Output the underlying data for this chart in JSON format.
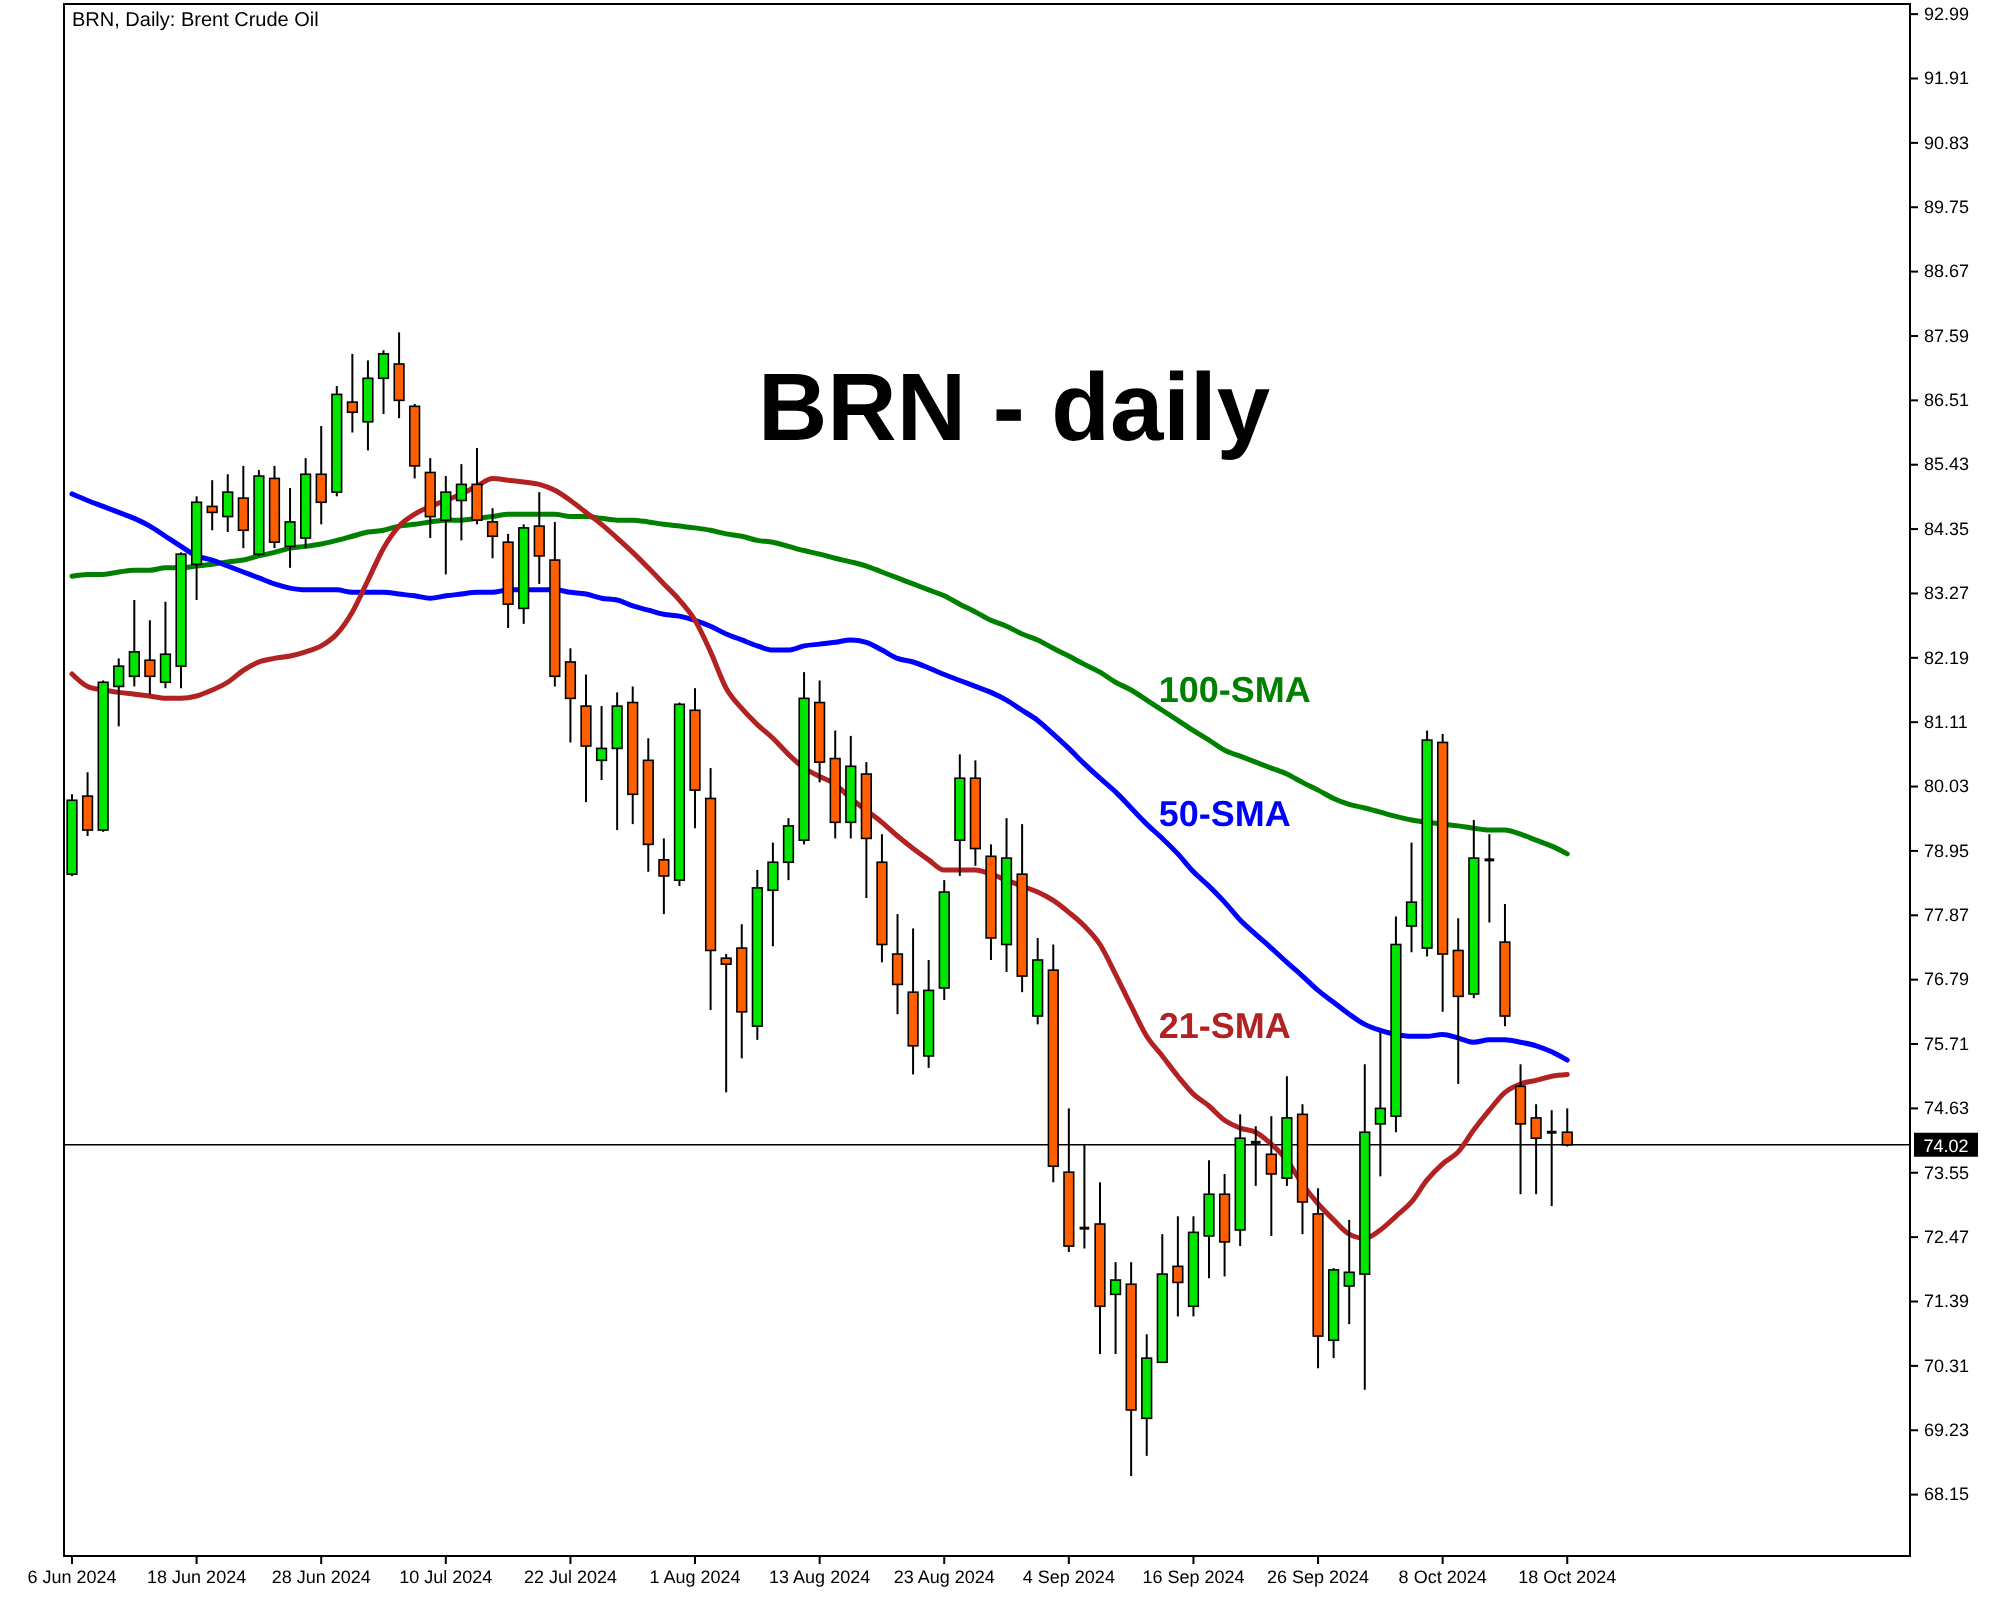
{
  "chart_data": {
    "type": "candlestick",
    "title": "BRN - daily",
    "subtitle": "BRN, Daily:  Brent Crude Oil",
    "categories": [
      "6 Jun 2024",
      null,
      null,
      null,
      null,
      null,
      null,
      null,
      "18 Jun 2024",
      null,
      null,
      null,
      null,
      null,
      null,
      null,
      "28 Jun 2024",
      null,
      null,
      null,
      null,
      null,
      null,
      null,
      "10 Jul 2024",
      null,
      null,
      null,
      null,
      null,
      null,
      null,
      "22 Jul 2024",
      null,
      null,
      null,
      null,
      null,
      null,
      null,
      "1 Aug 2024",
      null,
      null,
      null,
      null,
      null,
      null,
      null,
      "13 Aug 2024",
      null,
      null,
      null,
      null,
      null,
      null,
      null,
      "23 Aug 2024",
      null,
      null,
      null,
      null,
      null,
      null,
      null,
      "4 Sep 2024",
      null,
      null,
      null,
      null,
      null,
      null,
      null,
      "16 Sep 2024",
      null,
      null,
      null,
      null,
      null,
      null,
      null,
      "26 Sep 2024",
      null,
      null,
      null,
      null,
      null,
      null,
      null,
      "8 Oct 2024",
      null,
      null,
      null,
      null,
      null,
      null,
      null,
      "18 Oct 2024"
    ],
    "ohlc": [
      [
        78.56,
        79.9,
        78.53,
        79.8
      ],
      [
        79.87,
        80.27,
        79.2,
        79.3
      ],
      [
        79.3,
        81.81,
        79.27,
        81.78
      ],
      [
        81.71,
        82.18,
        81.04,
        82.05
      ],
      [
        81.88,
        83.16,
        81.71,
        82.29
      ],
      [
        82.15,
        82.82,
        81.58,
        81.88
      ],
      [
        81.78,
        83.13,
        81.68,
        82.25
      ],
      [
        82.05,
        83.96,
        81.68,
        83.93
      ],
      [
        83.76,
        84.9,
        83.16,
        84.8
      ],
      [
        84.73,
        85.17,
        84.33,
        84.63
      ],
      [
        84.56,
        85.27,
        84.3,
        84.97
      ],
      [
        84.87,
        85.41,
        84.03,
        84.33
      ],
      [
        83.93,
        85.34,
        83.9,
        85.24
      ],
      [
        85.2,
        85.41,
        84.03,
        84.13
      ],
      [
        84.06,
        85.04,
        83.7,
        84.47
      ],
      [
        84.2,
        85.54,
        84.03,
        85.27
      ],
      [
        85.27,
        86.08,
        84.43,
        84.8
      ],
      [
        84.97,
        86.75,
        84.9,
        86.61
      ],
      [
        86.48,
        87.29,
        85.97,
        86.31
      ],
      [
        86.15,
        87.18,
        85.67,
        86.88
      ],
      [
        86.88,
        87.35,
        86.28,
        87.29
      ],
      [
        87.12,
        87.65,
        86.21,
        86.51
      ],
      [
        86.41,
        86.45,
        85.2,
        85.41
      ],
      [
        85.3,
        85.54,
        84.2,
        84.56
      ],
      [
        84.5,
        85.24,
        83.59,
        84.97
      ],
      [
        84.83,
        85.44,
        84.16,
        85.1
      ],
      [
        85.1,
        85.71,
        84.43,
        84.5
      ],
      [
        84.47,
        84.7,
        83.86,
        84.23
      ],
      [
        84.13,
        84.27,
        82.69,
        83.09
      ],
      [
        83.02,
        84.43,
        82.76,
        84.37
      ],
      [
        84.4,
        84.97,
        83.43,
        83.9
      ],
      [
        83.83,
        84.47,
        81.71,
        81.88
      ],
      [
        82.12,
        82.35,
        80.77,
        81.51
      ],
      [
        81.38,
        81.91,
        79.77,
        80.71
      ],
      [
        80.47,
        81.38,
        80.14,
        80.67
      ],
      [
        80.67,
        81.61,
        79.3,
        81.38
      ],
      [
        81.44,
        81.71,
        79.4,
        79.9
      ],
      [
        80.47,
        80.84,
        78.6,
        79.06
      ],
      [
        78.8,
        79.16,
        77.89,
        78.53
      ],
      [
        78.46,
        81.44,
        78.36,
        81.41
      ],
      [
        81.31,
        81.68,
        79.33,
        79.97
      ],
      [
        79.83,
        80.34,
        76.28,
        77.28
      ],
      [
        77.15,
        77.22,
        74.9,
        77.05
      ],
      [
        77.32,
        77.72,
        75.47,
        76.25
      ],
      [
        76.01,
        78.63,
        75.78,
        78.33
      ],
      [
        78.29,
        79.09,
        77.35,
        78.76
      ],
      [
        78.76,
        79.5,
        78.46,
        79.37
      ],
      [
        79.13,
        81.95,
        79.06,
        81.51
      ],
      [
        81.44,
        81.81,
        80.1,
        80.44
      ],
      [
        80.5,
        80.97,
        79.16,
        79.43
      ],
      [
        79.43,
        80.88,
        79.16,
        80.37
      ],
      [
        80.24,
        80.44,
        78.16,
        79.16
      ],
      [
        78.76,
        79.23,
        77.08,
        77.38
      ],
      [
        77.22,
        77.89,
        76.21,
        76.71
      ],
      [
        76.58,
        77.65,
        75.2,
        75.68
      ],
      [
        75.51,
        77.12,
        75.31,
        76.61
      ],
      [
        76.65,
        78.46,
        76.45,
        78.26
      ],
      [
        79.13,
        80.57,
        78.53,
        80.17
      ],
      [
        80.17,
        80.47,
        78.7,
        78.99
      ],
      [
        78.86,
        79.06,
        77.12,
        77.49
      ],
      [
        77.38,
        79.5,
        76.92,
        78.83
      ],
      [
        78.56,
        79.4,
        76.58,
        76.85
      ],
      [
        76.18,
        77.49,
        76.04,
        77.12
      ],
      [
        76.95,
        77.38,
        73.39,
        73.66
      ],
      [
        73.56,
        74.63,
        72.22,
        72.32
      ],
      [
        72.62,
        74.03,
        72.28,
        72.62
      ],
      [
        72.69,
        73.39,
        70.51,
        71.31
      ],
      [
        71.51,
        72.05,
        70.51,
        71.75
      ],
      [
        71.68,
        72.05,
        68.46,
        69.57
      ],
      [
        69.43,
        70.84,
        68.8,
        70.44
      ],
      [
        70.37,
        72.52,
        70.37,
        71.85
      ],
      [
        71.98,
        72.82,
        71.14,
        71.71
      ],
      [
        71.31,
        72.82,
        71.14,
        72.55
      ],
      [
        72.49,
        73.76,
        71.78,
        73.19
      ],
      [
        73.19,
        73.53,
        71.81,
        72.39
      ],
      [
        72.59,
        74.53,
        72.32,
        74.13
      ],
      [
        74.06,
        74.33,
        73.33,
        74.06
      ],
      [
        73.86,
        74.5,
        72.49,
        73.53
      ],
      [
        73.46,
        75.17,
        73.33,
        74.47
      ],
      [
        74.53,
        74.7,
        72.52,
        73.06
      ],
      [
        72.86,
        73.29,
        70.27,
        70.81
      ],
      [
        70.74,
        71.95,
        70.44,
        71.92
      ],
      [
        71.65,
        72.76,
        71.01,
        71.88
      ],
      [
        71.85,
        75.37,
        69.91,
        74.23
      ],
      [
        74.37,
        75.91,
        73.49,
        74.63
      ],
      [
        74.5,
        77.85,
        74.23,
        77.38
      ],
      [
        77.69,
        79.09,
        77.25,
        78.09
      ],
      [
        77.32,
        80.97,
        77.18,
        80.81
      ],
      [
        80.77,
        80.91,
        76.25,
        77.22
      ],
      [
        77.28,
        77.82,
        75.04,
        76.51
      ],
      [
        76.55,
        79.47,
        76.48,
        78.83
      ],
      [
        78.8,
        79.23,
        77.75,
        78.8
      ],
      [
        77.42,
        78.06,
        76.01,
        76.18
      ],
      [
        75.0,
        75.37,
        73.19,
        74.37
      ],
      [
        74.47,
        74.7,
        73.19,
        74.13
      ],
      [
        74.23,
        74.6,
        72.99,
        74.23
      ],
      [
        74.23,
        74.63,
        73.99,
        74.02
      ]
    ],
    "colors": [
      "#00e600",
      "#ff5f00",
      "#00e600",
      "#00e600",
      "#00e600",
      "#ff5f00",
      "#00e600",
      "#00e600",
      "#00e600",
      "#ff5f00",
      "#00e600",
      "#ff5f00",
      "#00e600",
      "#ff5f00",
      "#00e600",
      "#00e600",
      "#ff5f00",
      "#00e600",
      "#ff5f00",
      "#00e600",
      "#00e600",
      "#ff5f00",
      "#ff5f00",
      "#ff5f00",
      "#00e600",
      "#00e600",
      "#ff5f00",
      "#ff5f00",
      "#ff5f00",
      "#00e600",
      "#ff5f00",
      "#ff5f00",
      "#ff5f00",
      "#ff5f00",
      "#00e600",
      "#00e600",
      "#ff5f00",
      "#ff5f00",
      "#ff5f00",
      "#00e600",
      "#ff5f00",
      "#ff5f00",
      "#ff5f00",
      "#ff5f00",
      "#00e600",
      "#00e600",
      "#00e600",
      "#00e600",
      "#ff5f00",
      "#ff5f00",
      "#00e600",
      "#ff5f00",
      "#ff5f00",
      "#ff5f00",
      "#ff5f00",
      "#00e600",
      "#00e600",
      "#00e600",
      "#ff5f00",
      "#ff5f00",
      "#00e600",
      "#ff5f00",
      "#00e600",
      "#ff5f00",
      "#ff5f00",
      "#000000",
      "#ff5f00",
      "#00e600",
      "#ff5f00",
      "#00e600",
      "#00e600",
      "#ff5f00",
      "#00e600",
      "#00e600",
      "#ff5f00",
      "#00e600",
      "#000000",
      "#ff5f00",
      "#00e600",
      "#ff5f00",
      "#ff5f00",
      "#00e600",
      "#00e600",
      "#00e600",
      "#00e600",
      "#00e600",
      "#00e600",
      "#00e600",
      "#ff5f00",
      "#ff5f00",
      "#00e600",
      "#000000",
      "#ff5f00",
      "#ff5f00",
      "#ff5f00",
      "#000000",
      "#ff5f00"
    ],
    "series": [
      {
        "type": "line",
        "name": "100-SMA",
        "color": "#008000",
        "values": [
          83.56,
          83.59,
          83.59,
          83.63,
          83.66,
          83.66,
          83.7,
          83.7,
          83.73,
          83.76,
          83.8,
          83.83,
          83.9,
          83.96,
          84.03,
          84.06,
          84.1,
          84.16,
          84.23,
          84.3,
          84.33,
          84.4,
          84.43,
          84.47,
          84.5,
          84.5,
          84.53,
          84.56,
          84.6,
          84.6,
          84.6,
          84.6,
          84.56,
          84.56,
          84.53,
          84.5,
          84.5,
          84.47,
          84.43,
          84.4,
          84.37,
          84.33,
          84.27,
          84.23,
          84.16,
          84.13,
          84.06,
          83.99,
          83.93,
          83.86,
          83.8,
          83.73,
          83.63,
          83.53,
          83.43,
          83.33,
          83.23,
          83.09,
          82.96,
          82.82,
          82.72,
          82.59,
          82.49,
          82.35,
          82.22,
          82.08,
          81.95,
          81.78,
          81.65,
          81.48,
          81.31,
          81.14,
          80.97,
          80.81,
          80.64,
          80.54,
          80.44,
          80.34,
          80.24,
          80.1,
          79.97,
          79.83,
          79.73,
          79.67,
          79.6,
          79.53,
          79.47,
          79.43,
          79.4,
          79.37,
          79.33,
          79.3,
          79.3,
          79.23,
          79.13,
          79.03,
          78.9
        ]
      },
      {
        "type": "line",
        "name": "50-SMA",
        "color": "#0000ff",
        "values": [
          84.94,
          84.83,
          84.73,
          84.63,
          84.53,
          84.4,
          84.23,
          84.06,
          83.9,
          83.83,
          83.73,
          83.63,
          83.53,
          83.43,
          83.36,
          83.33,
          83.33,
          83.33,
          83.29,
          83.29,
          83.29,
          83.26,
          83.23,
          83.19,
          83.23,
          83.26,
          83.29,
          83.29,
          83.33,
          83.33,
          83.33,
          83.33,
          83.29,
          83.26,
          83.19,
          83.16,
          83.06,
          82.99,
          82.92,
          82.89,
          82.82,
          82.72,
          82.59,
          82.49,
          82.39,
          82.32,
          82.32,
          82.39,
          82.42,
          82.45,
          82.49,
          82.45,
          82.32,
          82.18,
          82.12,
          82.02,
          81.91,
          81.81,
          81.71,
          81.61,
          81.48,
          81.31,
          81.14,
          80.91,
          80.67,
          80.41,
          80.17,
          79.94,
          79.67,
          79.4,
          79.16,
          78.9,
          78.6,
          78.36,
          78.09,
          77.79,
          77.55,
          77.32,
          77.08,
          76.85,
          76.61,
          76.41,
          76.21,
          76.04,
          75.94,
          75.87,
          75.84,
          75.84,
          75.87,
          75.81,
          75.74,
          75.78,
          75.78,
          75.74,
          75.68,
          75.58,
          75.44
        ]
      },
      {
        "type": "line",
        "name": "21-SMA",
        "color": "#b22222",
        "values": [
          81.92,
          81.71,
          81.65,
          81.61,
          81.58,
          81.55,
          81.51,
          81.51,
          81.55,
          81.65,
          81.78,
          81.98,
          82.12,
          82.18,
          82.22,
          82.29,
          82.39,
          82.59,
          82.96,
          83.49,
          84.03,
          84.4,
          84.6,
          84.73,
          84.83,
          84.94,
          85.07,
          85.2,
          85.17,
          85.14,
          85.1,
          85.0,
          84.83,
          84.63,
          84.43,
          84.2,
          83.96,
          83.7,
          83.43,
          83.16,
          82.82,
          82.29,
          81.68,
          81.34,
          81.07,
          80.84,
          80.57,
          80.34,
          80.2,
          80.07,
          79.83,
          79.63,
          79.43,
          79.2,
          78.99,
          78.8,
          78.63,
          78.63,
          78.63,
          78.56,
          78.46,
          78.36,
          78.26,
          78.12,
          77.92,
          77.69,
          77.38,
          76.88,
          76.35,
          75.84,
          75.51,
          75.17,
          74.87,
          74.67,
          74.43,
          74.3,
          74.23,
          74.03,
          73.76,
          73.36,
          73.03,
          72.76,
          72.52,
          72.45,
          72.59,
          72.82,
          73.06,
          73.43,
          73.7,
          73.9,
          74.27,
          74.6,
          74.9,
          75.04,
          75.1,
          75.17,
          75.2
        ]
      }
    ],
    "ylim": [
      67.12,
      93.16
    ],
    "yticks": [
      68.15,
      69.23,
      70.31,
      71.39,
      72.47,
      73.55,
      74.63,
      75.71,
      76.79,
      77.87,
      78.95,
      80.03,
      81.11,
      82.19,
      83.27,
      84.35,
      85.43,
      86.51,
      87.59,
      88.67,
      89.75,
      90.83,
      91.91,
      92.99
    ],
    "ref_lines": [
      {
        "axis": "y",
        "value": 74.02,
        "label": "74.02",
        "color": "#000000"
      }
    ]
  }
}
